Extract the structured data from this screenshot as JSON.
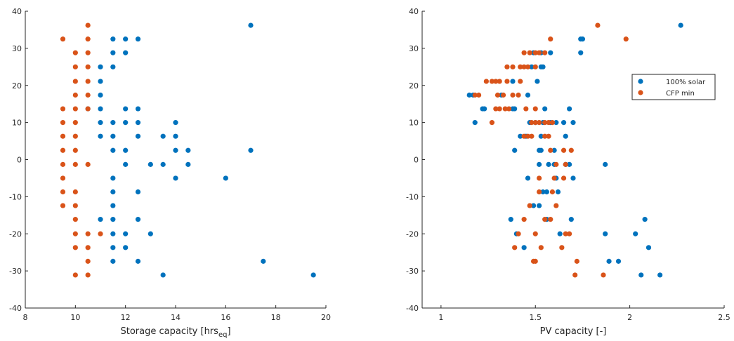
{
  "chart_data": [
    {
      "type": "scatter",
      "xlabel": "Storage capacity [hrs",
      "xlabel_sub": "eq",
      "xlabel_suffix": "]",
      "ylabel": "",
      "xlim": [
        8,
        20
      ],
      "ylim": [
        -40,
        40
      ],
      "xticks": [
        8,
        10,
        12,
        14,
        16,
        18,
        20
      ],
      "yticks": [
        -40,
        -30,
        -20,
        -10,
        0,
        10,
        20,
        30,
        40
      ],
      "grid": false,
      "series": [
        {
          "name": "100% solar",
          "color": "#0072BD",
          "points": [
            [
              10.5,
              13.7
            ],
            [
              11,
              25
            ],
            [
              11,
              21.1
            ],
            [
              11,
              17.4
            ],
            [
              11,
              13.7
            ],
            [
              11,
              10
            ],
            [
              11,
              6.3
            ],
            [
              11.5,
              32.5
            ],
            [
              11.5,
              28.8
            ],
            [
              11.5,
              25
            ],
            [
              12,
              32.5
            ],
            [
              12,
              28.8
            ],
            [
              12.5,
              32.5
            ],
            [
              12,
              13.7
            ],
            [
              12,
              10
            ],
            [
              12.5,
              13.7
            ],
            [
              12.5,
              10
            ],
            [
              12.5,
              6.3
            ],
            [
              11.5,
              10
            ],
            [
              11.5,
              6.3
            ],
            [
              11.5,
              2.5
            ],
            [
              12,
              2.5
            ],
            [
              12,
              -1.3
            ],
            [
              13,
              -1.3
            ],
            [
              13.5,
              6.3
            ],
            [
              13.5,
              -1.3
            ],
            [
              14,
              10
            ],
            [
              14,
              6.3
            ],
            [
              14,
              2.5
            ],
            [
              14.5,
              2.5
            ],
            [
              14.5,
              -1.3
            ],
            [
              14,
              -5
            ],
            [
              16,
              -5
            ],
            [
              17,
              36.2
            ],
            [
              17,
              2.5
            ],
            [
              11.5,
              -5
            ],
            [
              11.5,
              -8.7
            ],
            [
              11.5,
              -12.4
            ],
            [
              11.5,
              -16.1
            ],
            [
              12.5,
              -8.7
            ],
            [
              11,
              -16.1
            ],
            [
              11.5,
              -20
            ],
            [
              12,
              -20
            ],
            [
              12.5,
              -16.1
            ],
            [
              13,
              -20
            ],
            [
              12,
              -23.7
            ],
            [
              11.5,
              -23.7
            ],
            [
              11.5,
              -27.4
            ],
            [
              12.5,
              -27.4
            ],
            [
              13.5,
              -31.1
            ],
            [
              17.5,
              -27.4
            ],
            [
              19.5,
              -31.1
            ]
          ]
        },
        {
          "name": "CFP min",
          "color": "#D95319",
          "points": [
            [
              9.5,
              32.5
            ],
            [
              10,
              28.8
            ],
            [
              10,
              25
            ],
            [
              10,
              21.1
            ],
            [
              10,
              17.4
            ],
            [
              10,
              13.7
            ],
            [
              10,
              10
            ],
            [
              10,
              6.3
            ],
            [
              10,
              2.5
            ],
            [
              10,
              -1.3
            ],
            [
              10.5,
              36.2
            ],
            [
              10.5,
              32.5
            ],
            [
              10.5,
              28.8
            ],
            [
              10.5,
              25
            ],
            [
              10.5,
              21.1
            ],
            [
              10.5,
              17.4
            ],
            [
              10.5,
              13.7
            ],
            [
              10.5,
              -1.3
            ],
            [
              9.5,
              13.7
            ],
            [
              9.5,
              10
            ],
            [
              9.5,
              6.3
            ],
            [
              9.5,
              2.5
            ],
            [
              9.5,
              -1.3
            ],
            [
              9.5,
              -5
            ],
            [
              9.5,
              -8.7
            ],
            [
              9.5,
              -12.4
            ],
            [
              10,
              -8.7
            ],
            [
              10,
              -12.4
            ],
            [
              10,
              -16.1
            ],
            [
              10,
              -20
            ],
            [
              10,
              -23.7
            ],
            [
              10,
              -31.1
            ],
            [
              10.5,
              -20
            ],
            [
              10.5,
              -23.7
            ],
            [
              10.5,
              -27.4
            ],
            [
              10.5,
              -31.1
            ],
            [
              11,
              -20
            ]
          ]
        }
      ]
    },
    {
      "type": "scatter",
      "xlabel": "PV capacity [-]",
      "ylabel": "",
      "xlim": [
        0.9,
        2.5
      ],
      "ylim": [
        -40,
        40
      ],
      "xticks": [
        1,
        1.5,
        2,
        2.5
      ],
      "xtick_labels": [
        "1",
        "1.5",
        "2",
        "2.5"
      ],
      "yticks": [
        -40,
        -30,
        -20,
        -10,
        0,
        10,
        20,
        30,
        40
      ],
      "grid": false,
      "legend": {
        "position": "top-right",
        "entries": [
          "100% solar",
          "CFP min"
        ]
      },
      "series": [
        {
          "name": "100% solar",
          "color": "#0072BD",
          "points": [
            [
              2.27,
              36.2
            ],
            [
              1.74,
              32.5
            ],
            [
              1.75,
              32.5
            ],
            [
              1.49,
              28.8
            ],
            [
              1.53,
              28.8
            ],
            [
              1.58,
              28.8
            ],
            [
              1.74,
              28.8
            ],
            [
              1.48,
              25
            ],
            [
              1.53,
              25
            ],
            [
              1.54,
              25
            ],
            [
              1.38,
              21.1
            ],
            [
              1.51,
              21.1
            ],
            [
              1.15,
              17.4
            ],
            [
              1.17,
              17.4
            ],
            [
              1.32,
              17.4
            ],
            [
              1.46,
              17.4
            ],
            [
              1.22,
              13.7
            ],
            [
              1.23,
              13.7
            ],
            [
              1.38,
              13.7
            ],
            [
              1.39,
              13.7
            ],
            [
              1.55,
              13.7
            ],
            [
              1.68,
              13.7
            ],
            [
              1.18,
              10
            ],
            [
              1.47,
              10
            ],
            [
              1.5,
              10
            ],
            [
              1.54,
              10
            ],
            [
              1.58,
              10
            ],
            [
              1.61,
              10
            ],
            [
              1.65,
              10
            ],
            [
              1.7,
              10
            ],
            [
              1.42,
              6.3
            ],
            [
              1.45,
              6.3
            ],
            [
              1.53,
              6.3
            ],
            [
              1.66,
              6.3
            ],
            [
              1.39,
              2.5
            ],
            [
              1.52,
              2.5
            ],
            [
              1.53,
              2.5
            ],
            [
              1.6,
              2.5
            ],
            [
              1.52,
              -1.3
            ],
            [
              1.57,
              -1.3
            ],
            [
              1.6,
              -1.3
            ],
            [
              1.66,
              -1.3
            ],
            [
              1.68,
              -1.3
            ],
            [
              1.87,
              -1.3
            ],
            [
              1.46,
              -5
            ],
            [
              1.61,
              -5
            ],
            [
              1.7,
              -5
            ],
            [
              1.54,
              -8.7
            ],
            [
              1.56,
              -8.7
            ],
            [
              1.62,
              -8.7
            ],
            [
              1.49,
              -12.4
            ],
            [
              1.52,
              -12.4
            ],
            [
              1.56,
              -16.1
            ],
            [
              1.37,
              -16.1
            ],
            [
              1.69,
              -16.1
            ],
            [
              2.08,
              -16.1
            ],
            [
              1.4,
              -20
            ],
            [
              1.63,
              -20
            ],
            [
              1.87,
              -20
            ],
            [
              2.03,
              -20
            ],
            [
              1.44,
              -23.7
            ],
            [
              2.1,
              -23.7
            ],
            [
              1.89,
              -27.4
            ],
            [
              1.94,
              -27.4
            ],
            [
              2.06,
              -31.1
            ],
            [
              2.16,
              -31.1
            ]
          ]
        },
        {
          "name": "CFP min",
          "color": "#D95319",
          "points": [
            [
              1.83,
              36.2
            ],
            [
              1.98,
              32.5
            ],
            [
              1.58,
              32.5
            ],
            [
              1.44,
              28.8
            ],
            [
              1.47,
              28.8
            ],
            [
              1.5,
              28.8
            ],
            [
              1.52,
              28.8
            ],
            [
              1.55,
              28.8
            ],
            [
              1.35,
              25
            ],
            [
              1.38,
              25
            ],
            [
              1.42,
              25
            ],
            [
              1.44,
              25
            ],
            [
              1.46,
              25
            ],
            [
              1.5,
              25
            ],
            [
              1.24,
              21.1
            ],
            [
              1.27,
              21.1
            ],
            [
              1.29,
              21.1
            ],
            [
              1.31,
              21.1
            ],
            [
              1.35,
              21.1
            ],
            [
              1.42,
              21.1
            ],
            [
              1.18,
              17.4
            ],
            [
              1.2,
              17.4
            ],
            [
              1.3,
              17.4
            ],
            [
              1.33,
              17.4
            ],
            [
              1.38,
              17.4
            ],
            [
              1.41,
              17.4
            ],
            [
              1.29,
              13.7
            ],
            [
              1.31,
              13.7
            ],
            [
              1.34,
              13.7
            ],
            [
              1.36,
              13.7
            ],
            [
              1.45,
              13.7
            ],
            [
              1.5,
              13.7
            ],
            [
              1.27,
              10
            ],
            [
              1.48,
              10
            ],
            [
              1.5,
              10
            ],
            [
              1.52,
              10
            ],
            [
              1.55,
              10
            ],
            [
              1.57,
              10
            ],
            [
              1.59,
              10
            ],
            [
              1.44,
              6.3
            ],
            [
              1.46,
              6.3
            ],
            [
              1.48,
              6.3
            ],
            [
              1.55,
              6.3
            ],
            [
              1.57,
              6.3
            ],
            [
              1.58,
              2.5
            ],
            [
              1.65,
              2.5
            ],
            [
              1.69,
              2.5
            ],
            [
              1.61,
              -1.3
            ],
            [
              1.66,
              -1.3
            ],
            [
              1.52,
              -5
            ],
            [
              1.6,
              -5
            ],
            [
              1.65,
              -5
            ],
            [
              1.52,
              -8.7
            ],
            [
              1.59,
              -8.7
            ],
            [
              1.47,
              -12.4
            ],
            [
              1.61,
              -12.4
            ],
            [
              1.44,
              -16.1
            ],
            [
              1.55,
              -16.1
            ],
            [
              1.58,
              -16.1
            ],
            [
              1.41,
              -20
            ],
            [
              1.5,
              -20
            ],
            [
              1.66,
              -20
            ],
            [
              1.68,
              -20
            ],
            [
              1.39,
              -23.7
            ],
            [
              1.53,
              -23.7
            ],
            [
              1.64,
              -23.7
            ],
            [
              1.49,
              -27.4
            ],
            [
              1.5,
              -27.4
            ],
            [
              1.72,
              -27.4
            ],
            [
              1.71,
              -31.1
            ],
            [
              1.86,
              -31.1
            ]
          ]
        }
      ]
    }
  ]
}
